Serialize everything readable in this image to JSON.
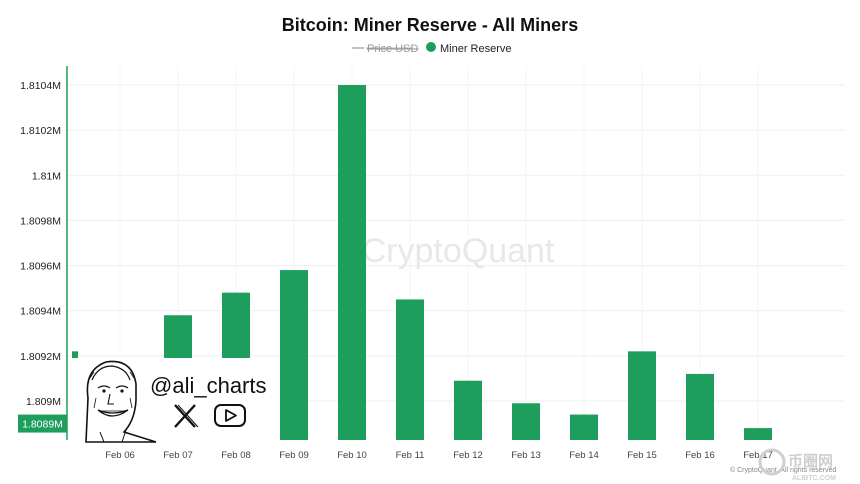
{
  "chart_data": {
    "type": "bar",
    "title": "Bitcoin: Miner Reserve - All Miners",
    "legend": [
      {
        "name": "Price USD",
        "hidden": true,
        "color": "#9a9a9a"
      },
      {
        "name": "Miner Reserve",
        "hidden": false,
        "color": "#1e9e5c"
      }
    ],
    "legend_position": "top-center",
    "categories": [
      "Feb 06",
      "Feb 07",
      "Feb 08",
      "Feb 09",
      "Feb 10",
      "Feb 11",
      "Feb 12",
      "Feb 13",
      "Feb 14",
      "Feb 15",
      "Feb 16",
      "Feb 17"
    ],
    "values": [
      1.80922,
      1.80938,
      1.80948,
      1.80958,
      1.8104,
      1.80945,
      1.80909,
      1.80899,
      1.80894,
      1.80922,
      1.80912,
      1.80888
    ],
    "y_ticks": [
      "1.8104M",
      "1.8102M",
      "1.81M",
      "1.8098M",
      "1.8096M",
      "1.8094M",
      "1.8092M",
      "1.809M"
    ],
    "y_tick_values": [
      1.8104,
      1.8102,
      1.81,
      1.8098,
      1.8096,
      1.8094,
      1.8092,
      1.809
    ],
    "current_value_label": "1.8089M",
    "current_value": 1.8089,
    "ylim": [
      1.80872,
      1.80417
    ],
    "grid": true,
    "bar_color": "#1e9e5c"
  },
  "watermark": "CryptoQuant",
  "handle": "@ali_charts",
  "copyright": "© CryptoQuant. All rights reserved",
  "corner_logo_text": "币圈网",
  "corner_logo_sub": "ALIBTC.COM"
}
